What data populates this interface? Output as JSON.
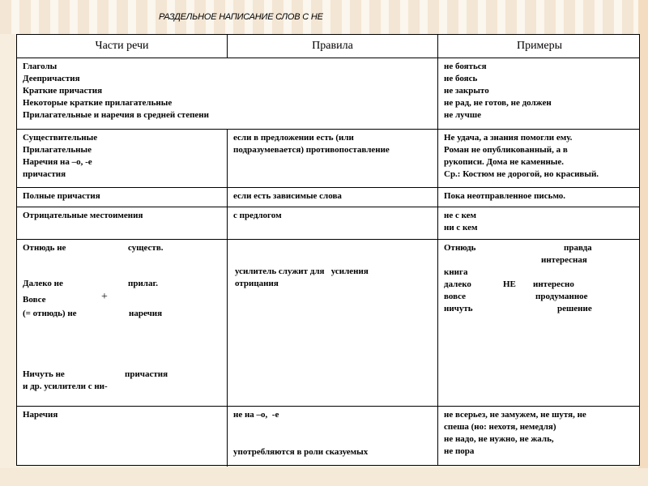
{
  "title": "РАЗДЕЛЬНОЕ НАПИСАНИЕ СЛОВ С НЕ",
  "headers": [
    "Части речи",
    "Правила",
    "Примеры"
  ],
  "rows": [
    {
      "parts": "Глаголы\nДеепричастия\nКраткие причастия\nНекоторые краткие прилагательные\nПрилагательные и наречия в средней степени",
      "rule": "",
      "examples": "не бояться\nне боясь\nне закрыто\nне рад, не готов, не должен\nне лучше"
    },
    {
      "parts": "Существительные\nПрилагательные\nНаречия на –о, -е\nпричастия",
      "rule": "если в предложении есть (или\nподразумевается) противопоставление",
      "examples": "Не удача, а знания помогли ему.\nРоман не опубликованный, а в\nрукописи. Дома не каменные.\nСр.: Костюм не дорогой, но красивый."
    },
    {
      "parts": "Полные причастия",
      "rule": "если есть зависимые слова",
      "examples": "Пока неотправленное письмо."
    },
    {
      "parts": "Отрицательные местоимения",
      "rule": "с предлогом",
      "examples": "не с кем\nни с кем"
    },
    {
      "parts_items": [
        "Отнюдь не",
        "существ.",
        "Далеко не",
        "прилаг.",
        "Вовсе",
        "+",
        "(= отнюдь) не",
        "наречия",
        "Ничуть не",
        "причастия",
        "и др. усилители с ни-"
      ],
      "rule": "усилитель служит для   усиления\nотрицания",
      "examples_items": [
        "Отнюдь",
        "правда",
        "интересная",
        "книга",
        "далеко",
        "НЕ",
        "интересно",
        "вовсе",
        "продуманное",
        "ничуть",
        "решение"
      ]
    },
    {
      "parts": "Наречия",
      "rule_items": [
        "не на –о,  -е",
        "употребляются в роли сказуемых"
      ],
      "examples": "не всерьез, не замужем, не шутя, не\nспеша (но: нехотя, немедля)\nне надо, не нужно, не жаль,\nне пора"
    }
  ]
}
